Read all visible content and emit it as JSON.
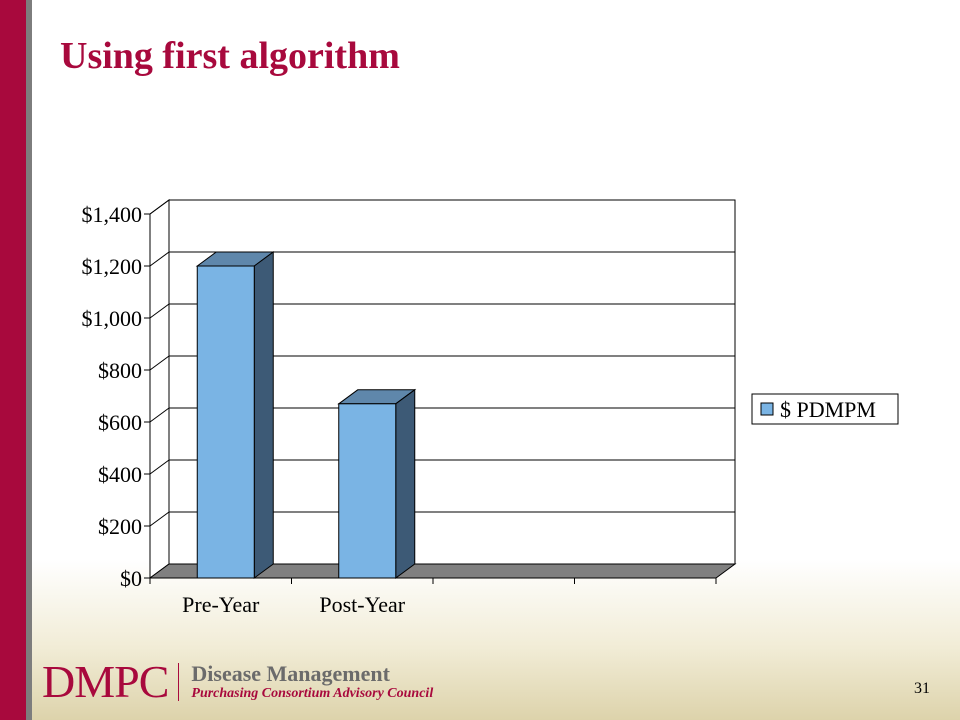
{
  "slide": {
    "title": "Using first algorithm",
    "page_number": "31"
  },
  "footer": {
    "logo_abbrev": "DMPC",
    "logo_line1": "Disease Management",
    "logo_line2": "Purchasing Consortium Advisory Council"
  },
  "colors": {
    "accent": "#a8093d",
    "bar_front": "#7ab4e4",
    "bar_side": "#3d5a76",
    "bar_top": "#5f87ab",
    "floor": "#808080"
  },
  "chart_data": {
    "type": "bar",
    "categories": [
      "Pre-Year",
      "Post-Year",
      "",
      ""
    ],
    "series": [
      {
        "name": "$ PDMPM",
        "values": [
          1200,
          670,
          null,
          null
        ]
      }
    ],
    "ylim": [
      0,
      1400
    ],
    "yticks": [
      0,
      200,
      400,
      600,
      800,
      1000,
      1200,
      1400
    ],
    "ytick_labels": [
      "$0",
      "$200",
      "$400",
      "$600",
      "$800",
      "$1,000",
      "$1,200",
      "$1,400"
    ],
    "grid": true,
    "legend": "right",
    "style": "3d",
    "title": "",
    "xlabel": "",
    "ylabel": ""
  }
}
